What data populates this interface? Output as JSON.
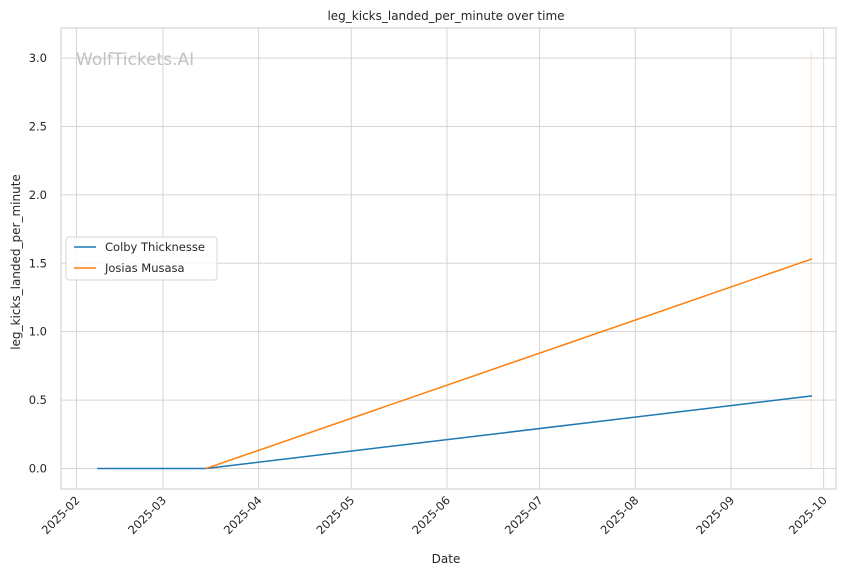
{
  "chart_data": {
    "type": "line",
    "title": "leg_kicks_landed_per_minute over time",
    "xlabel": "Date",
    "ylabel": "leg_kicks_landed_per_minute",
    "watermark": "WolfTickets.AI",
    "xlim": [
      "2025-01-27",
      "2025-10-05"
    ],
    "ylim": [
      -0.15,
      3.22
    ],
    "x_ticks": [
      "2025-02",
      "2025-03",
      "2025-04",
      "2025-05",
      "2025-06",
      "2025-07",
      "2025-08",
      "2025-09",
      "2025-10"
    ],
    "y_ticks": [
      0.0,
      0.5,
      1.0,
      1.5,
      2.0,
      2.5,
      3.0
    ],
    "y_tick_labels": [
      "0.0",
      "0.5",
      "1.0",
      "1.5",
      "2.0",
      "2.5",
      "3.0"
    ],
    "grid": true,
    "legend_position": "center-left",
    "series": [
      {
        "name": "Colby Thicknesse",
        "color": "#1f77b4",
        "x": [
          "2025-02-08",
          "2025-03-15",
          "2025-09-27"
        ],
        "y": [
          0.0,
          0.0,
          0.53
        ]
      },
      {
        "name": "Josias Musasa",
        "color": "#ff7f0e",
        "x": [
          "2025-03-15",
          "2025-09-27"
        ],
        "y": [
          0.0,
          1.53
        ]
      }
    ],
    "annotations": [
      {
        "type": "vertical-band",
        "color": "#ff7f0e",
        "x": "2025-09-27",
        "y_range": [
          0.0,
          3.06
        ]
      }
    ]
  }
}
